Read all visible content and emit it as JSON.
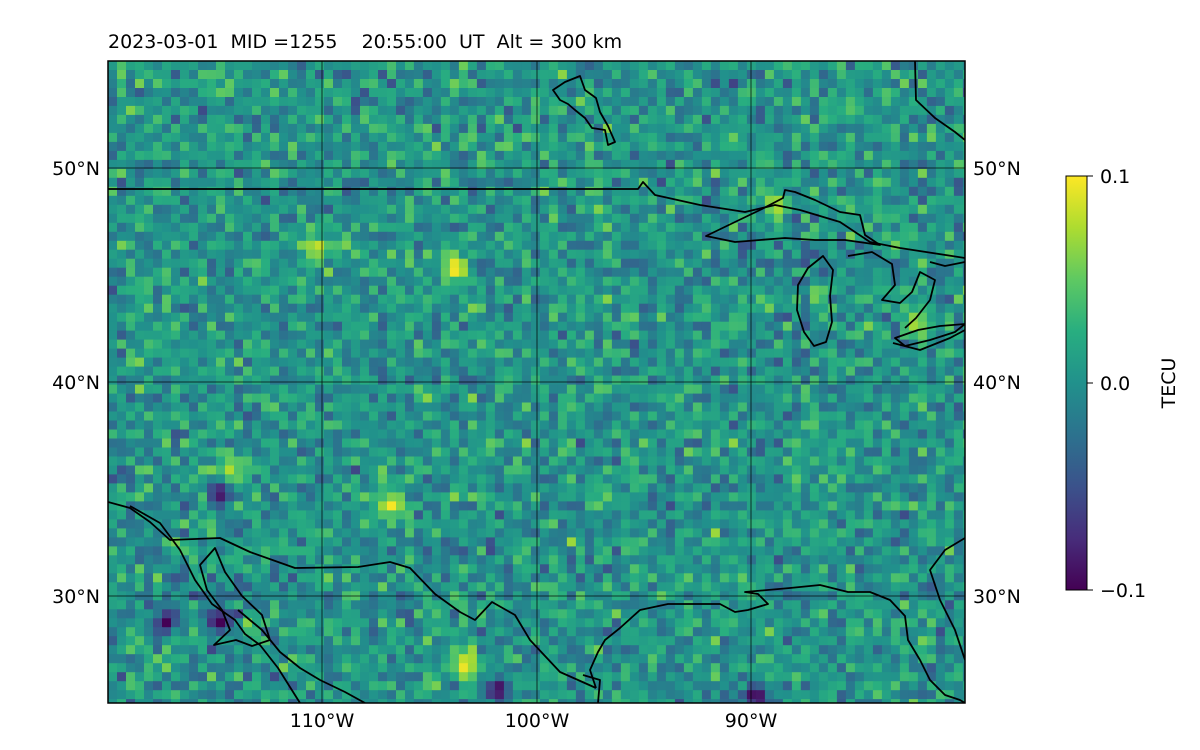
{
  "chart_data": {
    "type": "heatmap",
    "title": "2023-03-01  MID =1255    20:55:00  UT  Alt = 300 km",
    "projection": "lat-lon map",
    "x_range": [
      -120,
      -80
    ],
    "y_range": [
      25,
      55
    ],
    "grid": true,
    "x_ticks": [
      {
        "value": -110,
        "label": "110°W"
      },
      {
        "value": -100,
        "label": "100°W"
      },
      {
        "value": -90,
        "label": "90°W"
      }
    ],
    "y_ticks": [
      {
        "value": 50,
        "label": "50°N"
      },
      {
        "value": 40,
        "label": "40°N"
      },
      {
        "value": 30,
        "label": "30°N"
      }
    ],
    "colorbar": {
      "label": "TECU",
      "min": -0.1,
      "max": 0.1,
      "colormap": "viridis",
      "ticks": [
        {
          "value": 0.1,
          "label": "0.1"
        },
        {
          "value": 0.0,
          "label": "0.0"
        },
        {
          "value": -0.1,
          "label": "−0.1"
        }
      ]
    },
    "overlay": "coastlines and country borders (black lines)",
    "field_description": "noisy differential TEC perturbation field, mostly near 0.0 with scattered pixels ranging -0.1 to 0.1",
    "hotspots": [
      {
        "lon": -103.5,
        "lat": 27.0,
        "value": 0.1
      },
      {
        "lon": -107.0,
        "lat": 34.5,
        "value": 0.1
      },
      {
        "lon": -104.0,
        "lat": 45.5,
        "value": 0.1
      },
      {
        "lon": -110.5,
        "lat": 46.5,
        "value": 0.09
      },
      {
        "lon": -114.5,
        "lat": 36.0,
        "value": 0.08
      },
      {
        "lon": -89.0,
        "lat": 48.5,
        "value": 0.08
      },
      {
        "lon": -82.5,
        "lat": 43.0,
        "value": 0.08
      },
      {
        "lon": -115.0,
        "lat": 29.0,
        "value": -0.1
      },
      {
        "lon": -117.5,
        "lat": 29.0,
        "value": -0.1
      },
      {
        "lon": -90.0,
        "lat": 25.5,
        "value": -0.1
      },
      {
        "lon": -102.0,
        "lat": 25.8,
        "value": -0.1
      },
      {
        "lon": -115.0,
        "lat": 35.0,
        "value": -0.09
      }
    ]
  }
}
